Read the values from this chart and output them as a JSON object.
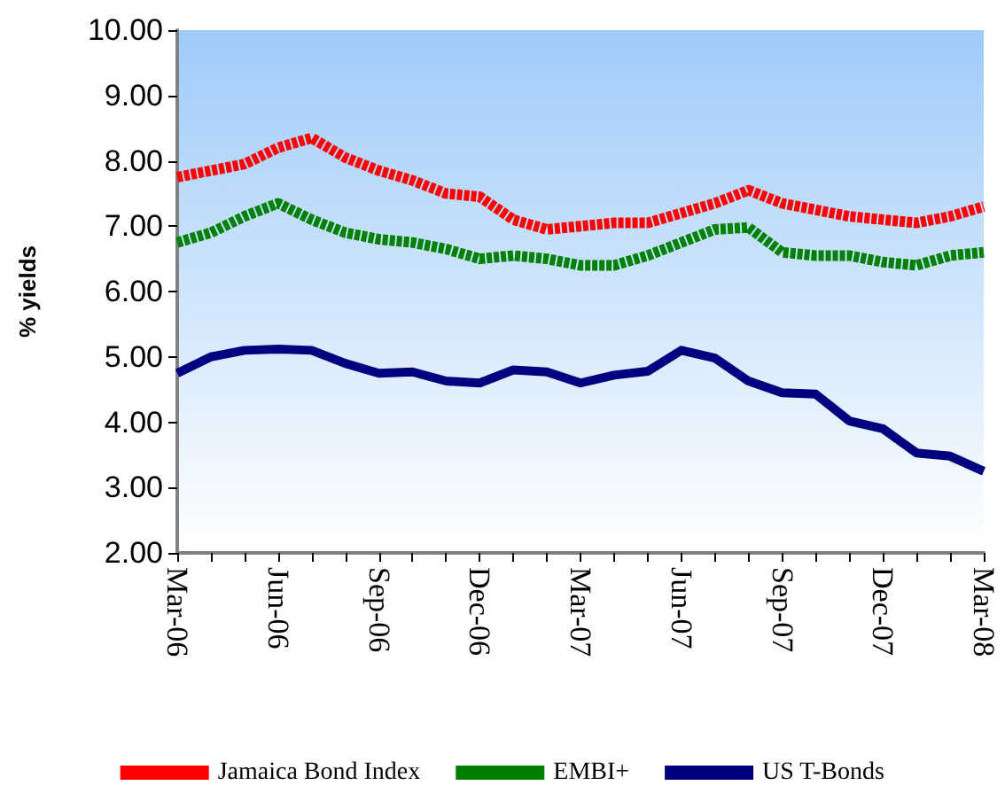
{
  "chart_data": {
    "type": "line",
    "ylabel": "% yields",
    "categories": [
      "Mar-06",
      null,
      null,
      "Jun-06",
      null,
      null,
      "Sep-06",
      null,
      null,
      "Dec-06",
      null,
      null,
      "Mar-07",
      null,
      null,
      "Jun-07",
      null,
      null,
      "Sep-07",
      null,
      null,
      "Dec-07",
      null,
      null,
      "Mar-08"
    ],
    "series": [
      {
        "name": "Jamaica Bond Index",
        "color": "#ff0000",
        "line_style": "dashed",
        "values": [
          7.75,
          7.85,
          7.95,
          8.2,
          8.35,
          8.05,
          7.85,
          7.7,
          7.5,
          7.45,
          7.1,
          6.95,
          7.0,
          7.05,
          7.05,
          7.2,
          7.35,
          7.55,
          7.35,
          7.25,
          7.15,
          7.1,
          7.05,
          7.15,
          7.3
        ]
      },
      {
        "name": "EMBI+",
        "color": "#008000",
        "line_style": "dashed",
        "values": [
          6.75,
          6.9,
          7.15,
          7.35,
          7.1,
          6.9,
          6.8,
          6.75,
          6.65,
          6.5,
          6.55,
          6.5,
          6.4,
          6.4,
          6.55,
          6.75,
          6.95,
          6.98,
          6.6,
          6.55,
          6.55,
          6.45,
          6.4,
          6.55,
          6.6
        ]
      },
      {
        "name": "US T-Bonds",
        "color": "#000080",
        "line_style": "solid",
        "values": [
          4.75,
          5.0,
          5.1,
          5.12,
          5.1,
          4.9,
          4.75,
          4.77,
          4.63,
          4.6,
          4.8,
          4.77,
          4.6,
          4.72,
          4.78,
          5.1,
          4.98,
          4.63,
          4.45,
          4.43,
          4.02,
          3.9,
          3.53,
          3.48,
          3.25
        ]
      }
    ],
    "ylim": [
      2,
      10
    ],
    "yticks": [
      {
        "value": 2,
        "label": "2.00"
      },
      {
        "value": 3,
        "label": "3.00"
      },
      {
        "value": 4,
        "label": "4.00"
      },
      {
        "value": 5,
        "label": "5.00"
      },
      {
        "value": 6,
        "label": "6.00"
      },
      {
        "value": 7,
        "label": "7.00"
      },
      {
        "value": 8,
        "label": "8.00"
      },
      {
        "value": 9,
        "label": "9.00"
      },
      {
        "value": 10,
        "label": "10.00"
      }
    ],
    "grid": false,
    "legend": "bottom",
    "marker": "none"
  }
}
